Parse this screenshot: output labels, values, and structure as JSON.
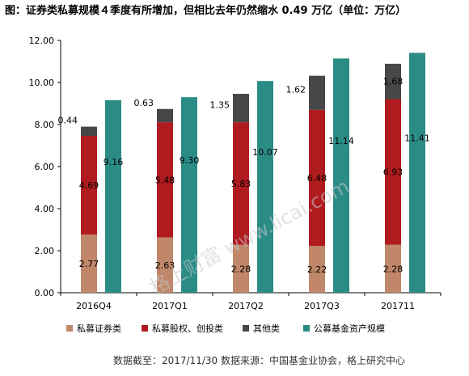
{
  "title": "图：证券类私募规模４季度有所增加，但相比去年仍然缩水 0.49 万亿（单位：万亿）",
  "source": "数据截至：2017/11/30 数据来源：中国基金业协会，格上研究中心",
  "watermark": "格上财富 www.licai.com",
  "colors": {
    "securities": "#C0876A",
    "pe": "#B01B1F",
    "other": "#474747",
    "fund": "#2A8C85"
  },
  "chart_data": {
    "type": "bar",
    "categories": [
      "2016Q4",
      "2017Q1",
      "2017Q2",
      "2017Q3",
      "201711"
    ],
    "ylim": [
      0,
      12
    ],
    "yticks": [
      "0.00",
      "2.00",
      "4.00",
      "6.00",
      "8.00",
      "10.00",
      "12.00"
    ],
    "stacked_series": [
      {
        "name": "私募证券类",
        "values": [
          2.77,
          2.63,
          2.28,
          2.22,
          2.28
        ],
        "labels": [
          "2.77",
          "2.63",
          "2.28",
          "2.22",
          "2.28"
        ]
      },
      {
        "name": "私募股权、创投类",
        "values": [
          4.69,
          5.48,
          5.83,
          6.48,
          6.93
        ],
        "labels": [
          "4.69",
          "5.48",
          "5.83",
          "6.48",
          "6.93"
        ]
      },
      {
        "name": "其他类",
        "values": [
          0.44,
          0.63,
          1.35,
          1.62,
          1.68
        ],
        "labels": [
          "0.44",
          "0.63",
          "1.35",
          "1.62",
          "1.68"
        ]
      }
    ],
    "side_series": {
      "name": "公募基金资产规模",
      "values": [
        9.16,
        9.3,
        10.07,
        11.14,
        11.41
      ],
      "labels": [
        "9.16",
        "9.30",
        "10.07",
        "11.14",
        "11.41"
      ]
    },
    "legend": [
      "私募证券类",
      "私募股权、创投类",
      "其他类",
      "公募基金资产规模"
    ],
    "legend_position": "bottom",
    "grid": false
  }
}
